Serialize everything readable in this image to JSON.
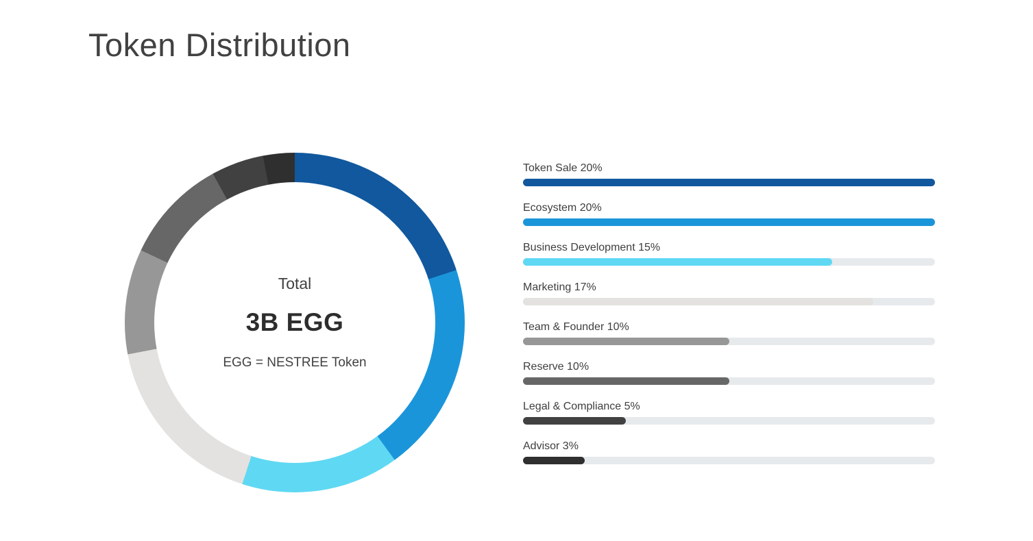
{
  "page": {
    "title": "Token Distribution"
  },
  "chart_data": {
    "type": "pie",
    "style": "donut",
    "title": "Token Distribution",
    "start_angle_deg": 0,
    "direction": "clockwise",
    "unit": "%",
    "center_label": "Total",
    "center_value": "3B EGG",
    "center_note": "EGG = NESTREE Token",
    "categories": [
      "Token Sale",
      "Ecosystem",
      "Business Development",
      "Marketing",
      "Team & Founder",
      "Reserve",
      "Legal & Compliance",
      "Advisor"
    ],
    "values": [
      20,
      20,
      15,
      17,
      10,
      10,
      5,
      3
    ],
    "colors": [
      "#11589E",
      "#1B95DA",
      "#5FD8F3",
      "#E3E2E0",
      "#979797",
      "#676767",
      "#414141",
      "#2F2F2F"
    ],
    "segments": [
      {
        "label": "Token Sale",
        "pct": 20,
        "display": "Token Sale 20%",
        "color": "#11589E"
      },
      {
        "label": "Ecosystem",
        "pct": 20,
        "display": "Ecosystem 20%",
        "color": "#1B95DA"
      },
      {
        "label": "Business Development",
        "pct": 15,
        "display": "Business Development 15%",
        "color": "#5FD8F3"
      },
      {
        "label": "Marketing",
        "pct": 17,
        "display": "Marketing 17%",
        "color": "#E3E2E0"
      },
      {
        "label": "Team & Founder",
        "pct": 10,
        "display": "Team & Founder 10%",
        "color": "#979797"
      },
      {
        "label": "Reserve",
        "pct": 10,
        "display": "Reserve 10%",
        "color": "#676767"
      },
      {
        "label": "Legal & Compliance",
        "pct": 5,
        "display": "Legal & Compliance 5%",
        "color": "#414141"
      },
      {
        "label": "Advisor",
        "pct": 3,
        "display": "Advisor 3%",
        "color": "#2F2F2F"
      }
    ],
    "legend_position": "right",
    "bar_track_color": "#E7EAED",
    "bar_scale_max_pct": 20
  }
}
